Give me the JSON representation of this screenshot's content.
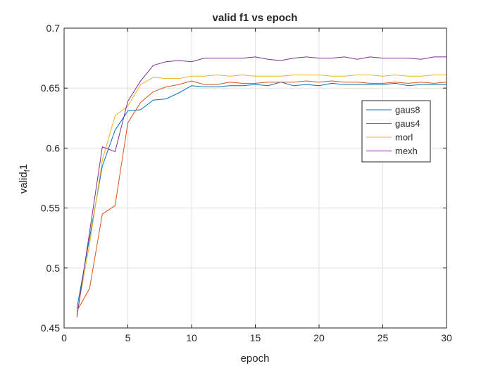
{
  "chart_data": {
    "type": "line",
    "title": "valid f1 vs epoch",
    "xlabel": "epoch",
    "ylabel": "valid",
    "ylabel_subscript": "f",
    "ylabel_suffix": "1",
    "xlim": [
      0,
      30
    ],
    "ylim": [
      0.45,
      0.7
    ],
    "xticks": [
      0,
      5,
      10,
      15,
      20,
      25,
      30
    ],
    "yticks": [
      0.45,
      0.5,
      0.55,
      0.6,
      0.65,
      0.7
    ],
    "ytick_labels": [
      "0.45",
      "0.5",
      "0.55",
      "0.6",
      "0.65",
      "0.7"
    ],
    "grid": true,
    "legend_position": "right",
    "x": [
      1,
      2,
      3,
      4,
      5,
      6,
      7,
      8,
      9,
      10,
      11,
      12,
      13,
      14,
      15,
      16,
      17,
      18,
      19,
      20,
      21,
      22,
      23,
      24,
      25,
      26,
      27,
      28,
      29,
      30
    ],
    "series": [
      {
        "name": "gaus8",
        "color": "#0072bd",
        "values": [
          0.466,
          0.525,
          0.585,
          0.615,
          0.631,
          0.632,
          0.64,
          0.641,
          0.646,
          0.652,
          0.651,
          0.651,
          0.652,
          0.652,
          0.653,
          0.652,
          0.655,
          0.652,
          0.653,
          0.652,
          0.654,
          0.653,
          0.653,
          0.653,
          0.653,
          0.654,
          0.652,
          0.653,
          0.653,
          0.653
        ]
      },
      {
        "name": "gaus4",
        "color": "#d95319",
        "values": [
          0.464,
          0.483,
          0.545,
          0.552,
          0.621,
          0.638,
          0.647,
          0.651,
          0.653,
          0.656,
          0.653,
          0.653,
          0.655,
          0.654,
          0.654,
          0.655,
          0.655,
          0.655,
          0.656,
          0.655,
          0.656,
          0.655,
          0.655,
          0.654,
          0.654,
          0.655,
          0.654,
          0.655,
          0.654,
          0.655
        ]
      },
      {
        "name": "morl",
        "color": "#edb120",
        "values": [
          0.461,
          0.52,
          0.59,
          0.627,
          0.635,
          0.653,
          0.659,
          0.658,
          0.658,
          0.66,
          0.66,
          0.661,
          0.66,
          0.661,
          0.66,
          0.66,
          0.66,
          0.661,
          0.661,
          0.661,
          0.66,
          0.66,
          0.661,
          0.661,
          0.66,
          0.661,
          0.66,
          0.66,
          0.661,
          0.661
        ]
      },
      {
        "name": "mexh",
        "color": "#7e2f8e",
        "values": [
          0.459,
          0.53,
          0.601,
          0.597,
          0.639,
          0.656,
          0.669,
          0.672,
          0.673,
          0.672,
          0.675,
          0.675,
          0.675,
          0.675,
          0.676,
          0.674,
          0.673,
          0.675,
          0.676,
          0.675,
          0.675,
          0.676,
          0.674,
          0.676,
          0.675,
          0.675,
          0.675,
          0.674,
          0.676,
          0.676
        ]
      }
    ]
  }
}
